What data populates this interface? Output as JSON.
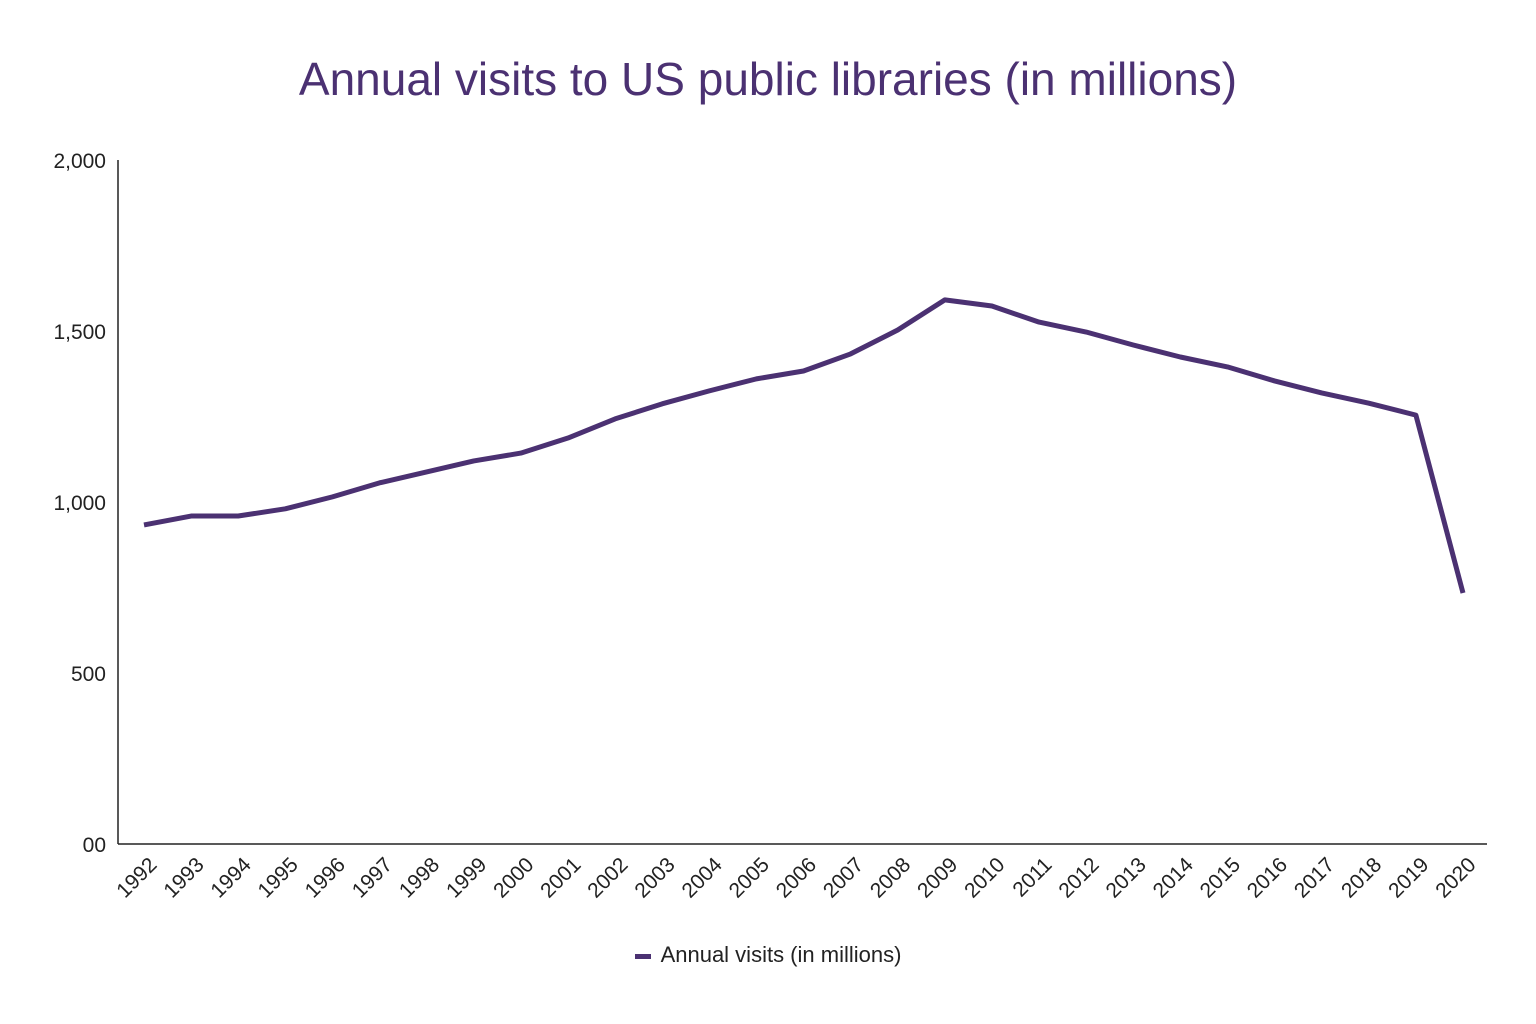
{
  "chart_data": {
    "type": "line",
    "title": "Annual visits to US public libraries (in millions)",
    "xlabel": "",
    "ylabel": "",
    "ylim": [
      0,
      2000
    ],
    "yticks": [
      0,
      500,
      1000,
      1500,
      2000
    ],
    "ytick_labels": [
      "00",
      "500",
      "1,000",
      "1,500",
      "2,000"
    ],
    "categories": [
      "1992",
      "1993",
      "1994",
      "1995",
      "1996",
      "1997",
      "1998",
      "1999",
      "2000",
      "2001",
      "2002",
      "2003",
      "2004",
      "2005",
      "2006",
      "2007",
      "2008",
      "2009",
      "2010",
      "2011",
      "2012",
      "2013",
      "2014",
      "2015",
      "2016",
      "2017",
      "2018",
      "2019",
      "2020"
    ],
    "series": [
      {
        "name": "Annual visits (in millions)",
        "color": "#4b3172",
        "values": [
          933,
          959,
          959,
          980,
          1015,
          1056,
          1088,
          1120,
          1143,
          1187,
          1243,
          1287,
          1325,
          1360,
          1383,
          1433,
          1503,
          1591,
          1573,
          1526,
          1497,
          1459,
          1424,
          1395,
          1354,
          1319,
          1289,
          1254,
          734
        ]
      }
    ],
    "grid": false,
    "legend": "bottom-center"
  }
}
